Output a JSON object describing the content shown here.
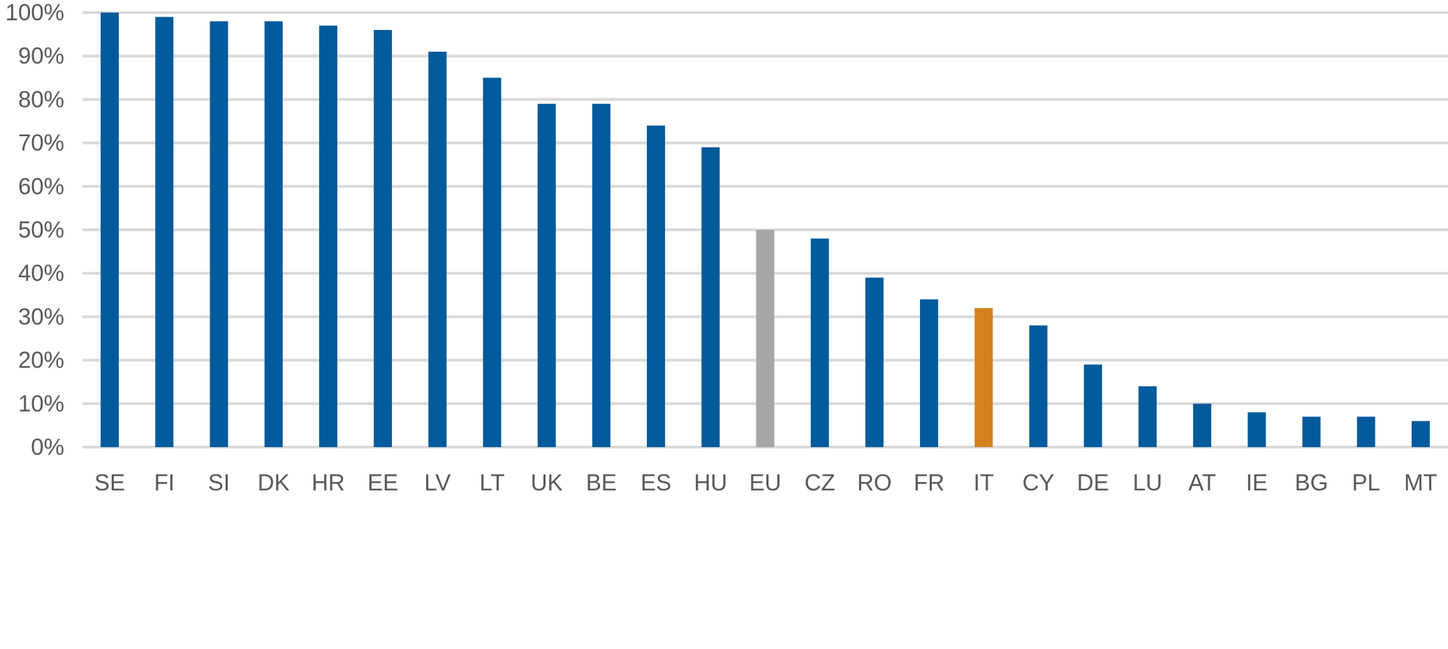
{
  "chart_data": {
    "type": "bar",
    "categories": [
      "SE",
      "FI",
      "SI",
      "DK",
      "HR",
      "EE",
      "LV",
      "LT",
      "UK",
      "BE",
      "ES",
      "HU",
      "EU",
      "CZ",
      "RO",
      "FR",
      "IT",
      "CY",
      "DE",
      "LU",
      "AT",
      "IE",
      "BG",
      "PL",
      "MT"
    ],
    "values": [
      100,
      99,
      98,
      98,
      97,
      96,
      91,
      85,
      79,
      79,
      74,
      69,
      50,
      48,
      39,
      34,
      32,
      28,
      19,
      14,
      10,
      8,
      7,
      7,
      6
    ],
    "title": "",
    "xlabel": "",
    "ylabel": "",
    "ylim": [
      0,
      100
    ],
    "yticks": [
      "0%",
      "10%",
      "20%",
      "30%",
      "40%",
      "50%",
      "60%",
      "70%",
      "80%",
      "90%",
      "100%"
    ],
    "grid": true,
    "legend": "none",
    "colors": {
      "default": "#005a9c",
      "highlight": {
        "EU": "#a6a6a6",
        "IT": "#d4821f"
      }
    }
  }
}
